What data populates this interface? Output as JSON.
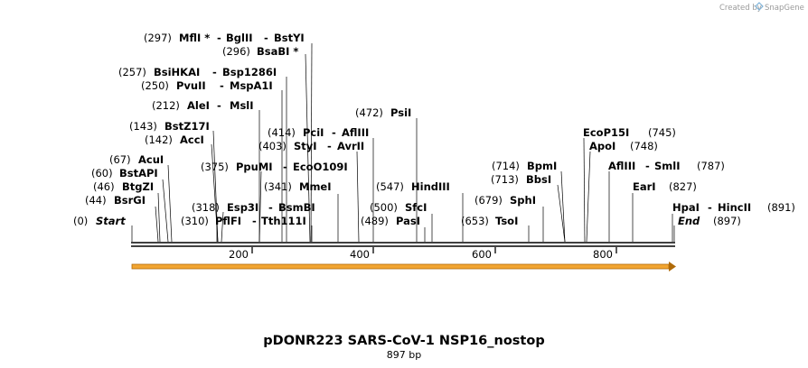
{
  "credit": {
    "text": "Created by",
    "brand": "SnapGene"
  },
  "title": "pDONR223 SARS-CoV-1 NSP16_nostop",
  "length_label": "897 bp",
  "sequence": {
    "length": 897,
    "ticks": [
      200,
      400,
      600,
      800
    ],
    "feature_color": "#f2a531"
  },
  "sites": [
    {
      "id": "start",
      "pos": "(0)",
      "name": "Start",
      "bp": 0,
      "italic": true
    },
    {
      "id": "bsrgi",
      "pos": "(44)",
      "name": "BsrGI",
      "bp": 44
    },
    {
      "id": "btgzi",
      "pos": "(46)",
      "name": "BtgZI",
      "bp": 46
    },
    {
      "id": "bstapi",
      "pos": "(60)",
      "name": "BstAPI",
      "bp": 60
    },
    {
      "id": "acui",
      "pos": "(67)",
      "name": "AcuI",
      "bp": 67
    },
    {
      "id": "acci",
      "pos": "(142)",
      "name": "AccI",
      "bp": 142
    },
    {
      "id": "bstz17i",
      "pos": "(143)",
      "name": "BstZ17I",
      "bp": 143
    },
    {
      "id": "alei",
      "pos": "(212)",
      "name": "AleI",
      "extra": "MslI",
      "bp": 212
    },
    {
      "id": "pvuii",
      "pos": "(250)",
      "name": "PvuII",
      "extra": "MspA1I",
      "bp": 250
    },
    {
      "id": "bsihkai",
      "pos": "(257)",
      "name": "BsiHKAI",
      "extra": "Bsp1286I",
      "bp": 257
    },
    {
      "id": "bsabi",
      "pos": "(296)",
      "name": "BsaBI *",
      "bp": 296
    },
    {
      "id": "mfli",
      "pos": "(297)",
      "name": "MflI *",
      "extra": "BglII",
      "extra2": "BstYI",
      "bp": 297
    },
    {
      "id": "pflfi",
      "pos": "(310)",
      "name": "PflFI",
      "extra": "Tth111I",
      "bp": 310
    },
    {
      "id": "esp3i",
      "pos": "(318)",
      "name": "Esp3I",
      "extra": "BsmBI",
      "bp": 318
    },
    {
      "id": "mmei",
      "pos": "(341)",
      "name": "MmeI",
      "bp": 341
    },
    {
      "id": "ppumi",
      "pos": "(375)",
      "name": "PpuMI",
      "extra": "EcoO109I",
      "bp": 375
    },
    {
      "id": "styi",
      "pos": "(403)",
      "name": "StyI",
      "extra": "AvrII",
      "bp": 403
    },
    {
      "id": "pcii",
      "pos": "(414)",
      "name": "PciI",
      "extra": "AflIII",
      "bp": 414
    },
    {
      "id": "psii",
      "pos": "(472)",
      "name": "PsiI",
      "bp": 472
    },
    {
      "id": "pasi",
      "pos": "(489)",
      "name": "PasI",
      "bp": 489
    },
    {
      "id": "sfci",
      "pos": "(500)",
      "name": "SfcI",
      "bp": 500
    },
    {
      "id": "hindiii",
      "pos": "(547)",
      "name": "HindIII",
      "bp": 547
    },
    {
      "id": "tsoi",
      "pos": "(653)",
      "name": "TsoI",
      "bp": 653
    },
    {
      "id": "sphi",
      "pos": "(679)",
      "name": "SphI",
      "bp": 679
    },
    {
      "id": "bbsi",
      "pos": "(713)",
      "name": "BbsI",
      "bp": 713
    },
    {
      "id": "bpmi",
      "pos": "(714)",
      "name": "BpmI",
      "bp": 714
    },
    {
      "id": "ecop15i",
      "pos": "(745)",
      "name": "EcoP15I",
      "bp": 745
    },
    {
      "id": "apoi",
      "pos": "(748)",
      "name": "ApoI",
      "bp": 748
    },
    {
      "id": "afliii2",
      "pos": "(787)",
      "name": "AflIII",
      "extra": "SmlI",
      "bp": 787
    },
    {
      "id": "eari",
      "pos": "(827)",
      "name": "EarI",
      "bp": 827
    },
    {
      "id": "hpai",
      "pos": "(891)",
      "name": "HpaI",
      "extra": "HincII",
      "bp": 891
    },
    {
      "id": "end",
      "pos": "(897)",
      "name": "End",
      "bp": 897,
      "italic": true
    }
  ]
}
